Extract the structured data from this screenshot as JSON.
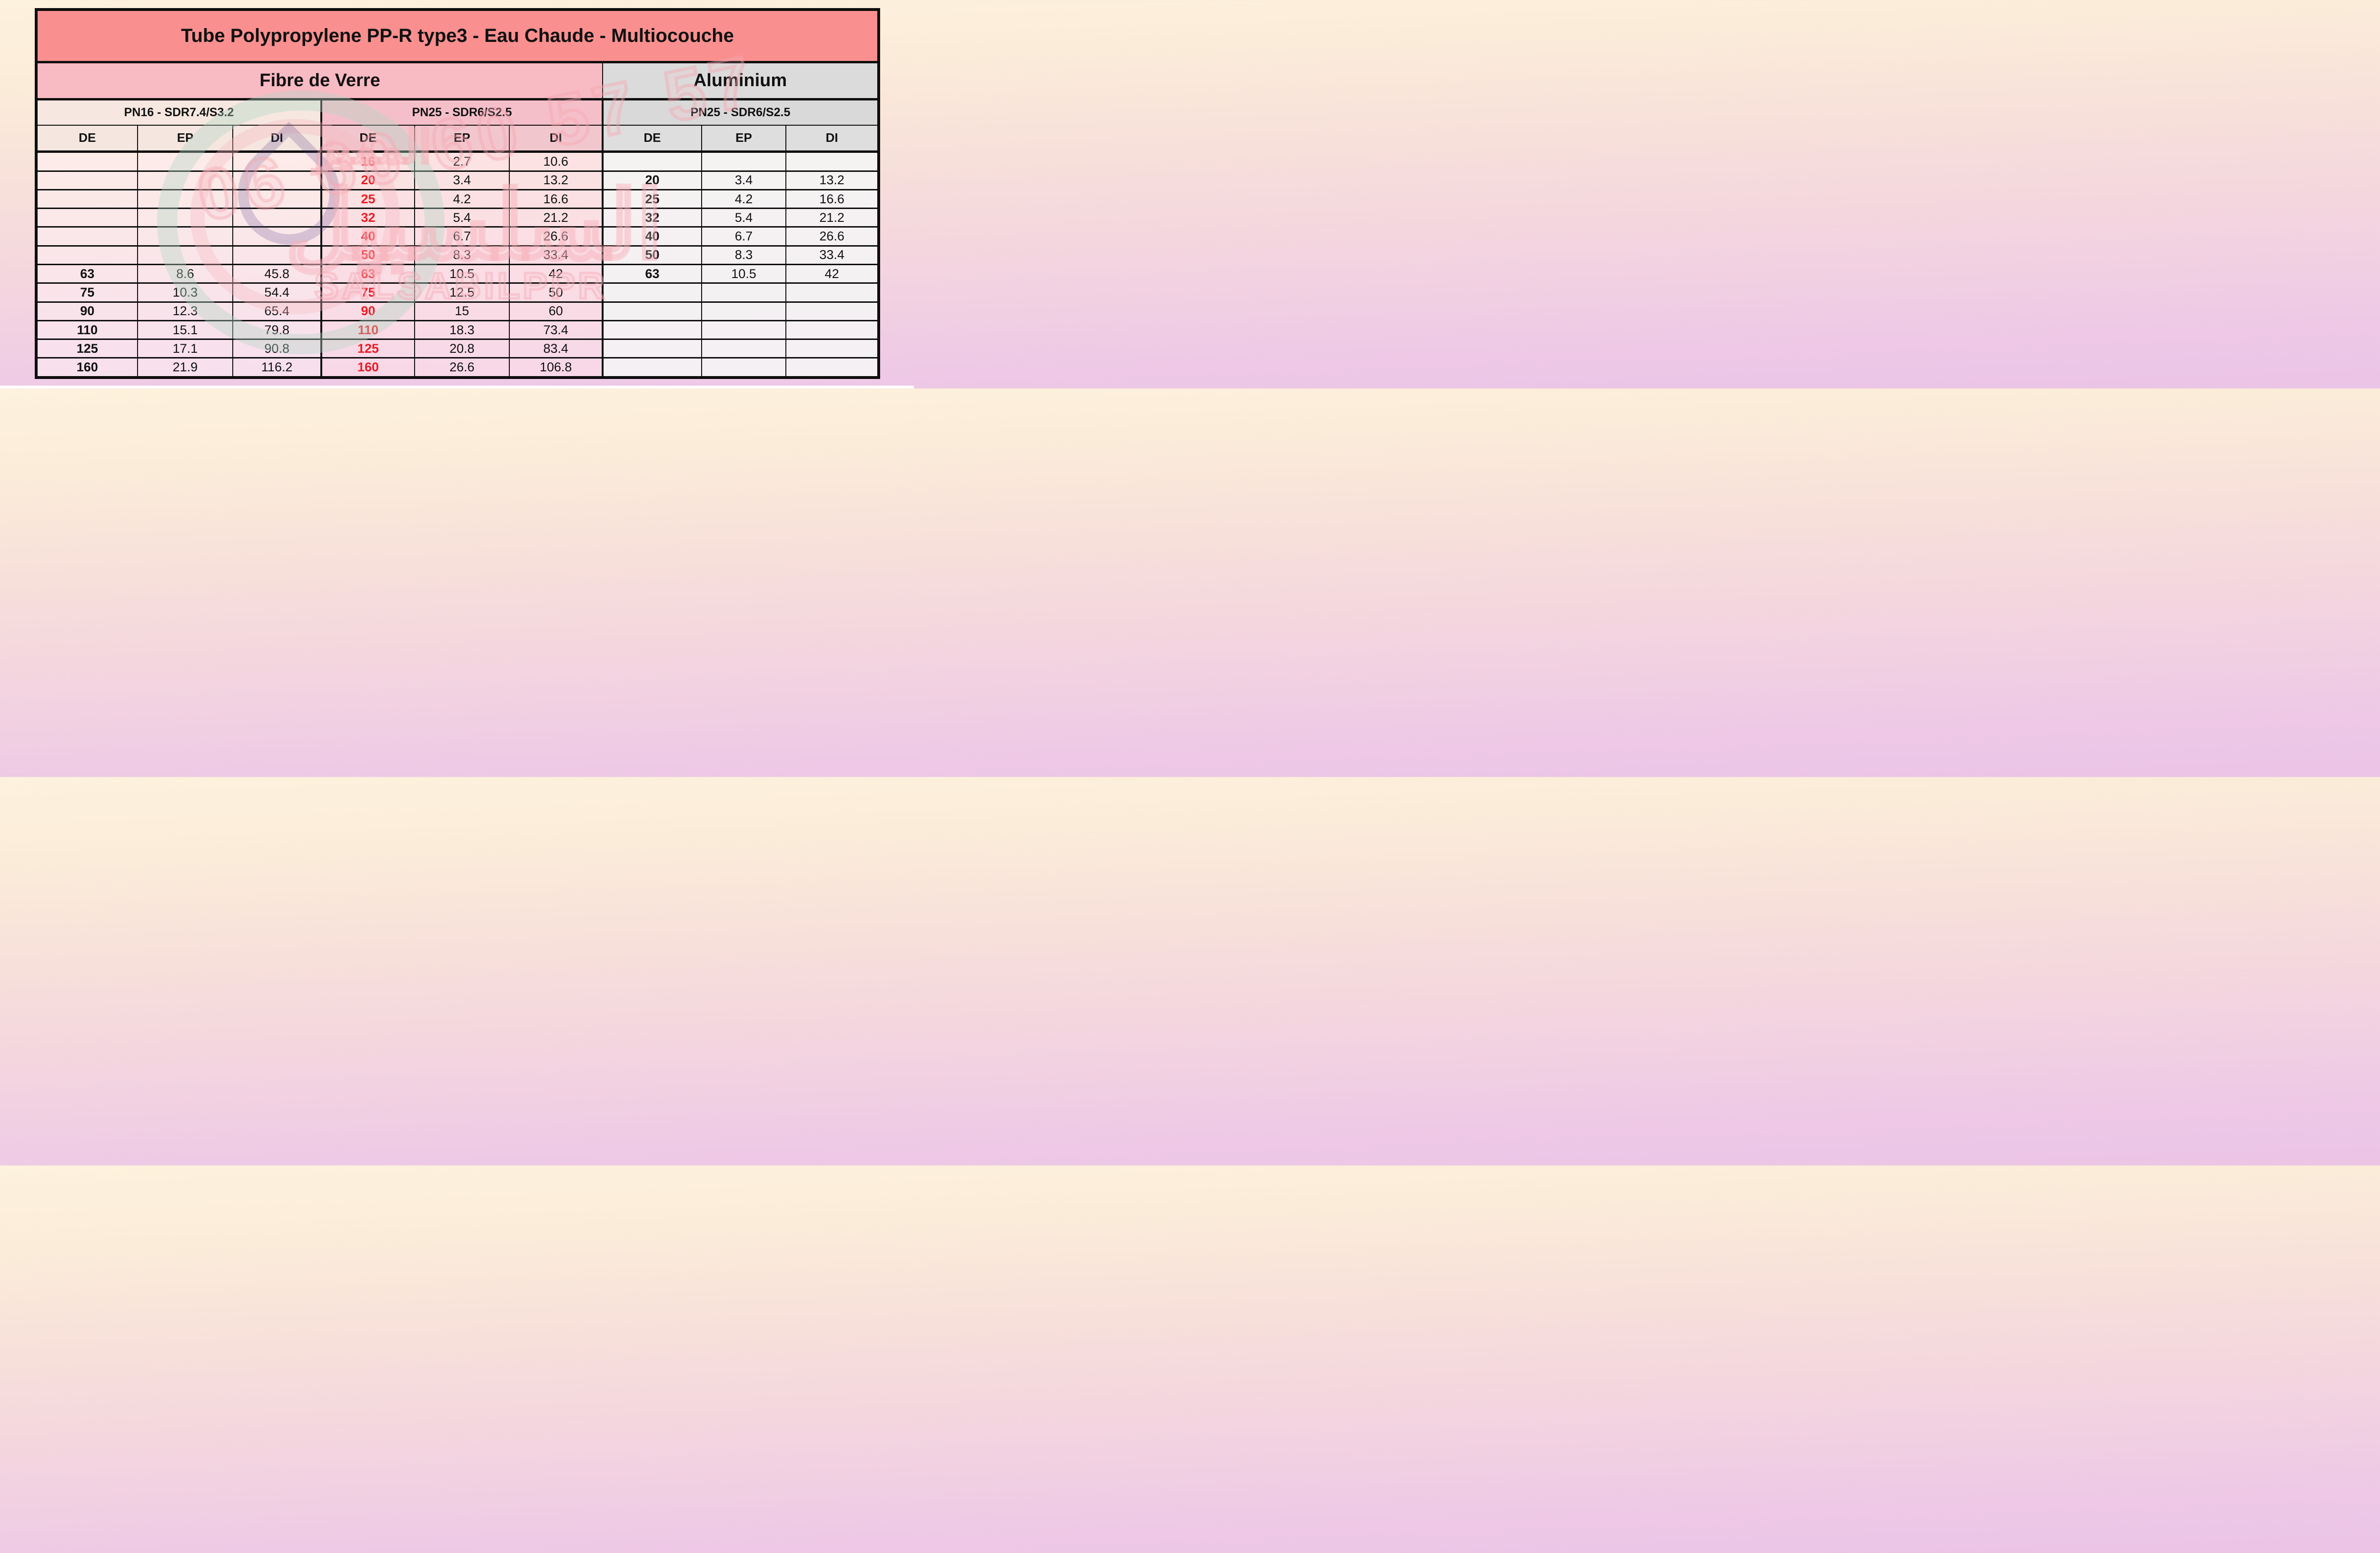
{
  "title": "Tube Polypropylene  PP-R type3  - Eau Chaude - Multiocouche",
  "sections": {
    "fibre": {
      "label": "Fibre de Verre"
    },
    "aluminium": {
      "label": "Aluminium"
    }
  },
  "subsections": {
    "pn16": {
      "label": "PN16  - SDR7.4/S3.2"
    },
    "pn25_fibre": {
      "label": "PN25  - SDR6/S2.5"
    },
    "pn25_alu": {
      "label": "PN25  - SDR6/S2.5"
    }
  },
  "column_headers": [
    "DE",
    "EP",
    "DI"
  ],
  "rows": [
    [
      "",
      "",
      "",
      "16",
      "2.7",
      "10.6",
      "",
      "",
      ""
    ],
    [
      "",
      "",
      "",
      "20",
      "3.4",
      "13.2",
      "20",
      "3.4",
      "13.2"
    ],
    [
      "",
      "",
      "",
      "25",
      "4.2",
      "16.6",
      "25",
      "4.2",
      "16.6"
    ],
    [
      "",
      "",
      "",
      "32",
      "5.4",
      "21.2",
      "32",
      "5.4",
      "21.2"
    ],
    [
      "",
      "",
      "",
      "40",
      "6.7",
      "26.6",
      "40",
      "6.7",
      "26.6"
    ],
    [
      "",
      "",
      "",
      "50",
      "8.3",
      "33.4",
      "50",
      "8.3",
      "33.4"
    ],
    [
      "63",
      "8.6",
      "45.8",
      "63",
      "10.5",
      "42",
      "63",
      "10.5",
      "42"
    ],
    [
      "75",
      "10.3",
      "54.4",
      "75",
      "12.5",
      "50",
      "",
      "",
      ""
    ],
    [
      "90",
      "12.3",
      "65.4",
      "90",
      "15",
      "60",
      "",
      "",
      ""
    ],
    [
      "110",
      "15.1",
      "79.8",
      "110",
      "18.3",
      "73.4",
      "",
      "",
      ""
    ],
    [
      "125",
      "17.1",
      "90.8",
      "125",
      "20.8",
      "83.4",
      "",
      "",
      ""
    ],
    [
      "160",
      "21.9",
      "116.2",
      "160",
      "26.6",
      "106.8",
      "",
      "",
      ""
    ]
  ],
  "watermark": {
    "phone": "06 60 60 57 57",
    "arabic_word_top": "المميز",
    "arabic_word_big": "السلسبيل",
    "brand": "SALSABILPPR"
  },
  "colors": {
    "title_bg": "#f9908f",
    "fibre_band_bg": "#f8bac3",
    "aluminium_band_bg": "#dbdbdb",
    "pn16_band_bg": "#f6e8e0",
    "pn25_band_bg": "#f5bfc9",
    "red_de_text": "#ed1c24",
    "page_gradient_top": "#fdf2dd",
    "page_gradient_bottom": "#ebc4e6"
  }
}
